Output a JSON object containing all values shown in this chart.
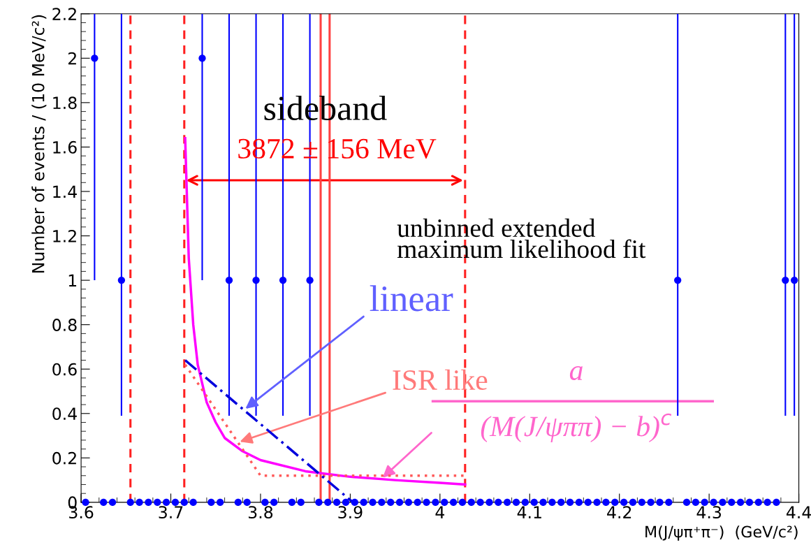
{
  "chart_data": {
    "type": "scatter",
    "xlabel": "M(J/ψπ⁺π⁻)  (GeV/c²)",
    "ylabel": "Number of events / (10 MeV/c²)",
    "xlim": [
      3.6,
      4.4
    ],
    "xticks": [
      3.6,
      3.7,
      3.8,
      3.9,
      4,
      4.1,
      4.2,
      4.3,
      4.4
    ],
    "ylim": [
      0,
      2.2
    ],
    "yticks": [
      0,
      0.2,
      0.4,
      0.6,
      0.8,
      1,
      1.2,
      1.4,
      1.6,
      1.8,
      2,
      2.2
    ],
    "grid": false,
    "marker": "circle",
    "series": [
      {
        "color": "#0000ff",
        "x": [
          3.605,
          3.615,
          3.625,
          3.635,
          3.645,
          3.655,
          3.665,
          3.675,
          3.685,
          3.695,
          3.705,
          3.715,
          3.725,
          3.735,
          3.745,
          3.755,
          3.765,
          3.775,
          3.785,
          3.795,
          3.805,
          3.815,
          3.825,
          3.835,
          3.845,
          3.855,
          3.865,
          3.875,
          3.885,
          3.895,
          3.905,
          3.915,
          3.925,
          3.935,
          3.945,
          3.955,
          3.965,
          3.975,
          3.985,
          3.995,
          4.005,
          4.015,
          4.025,
          4.035,
          4.045,
          4.055,
          4.065,
          4.075,
          4.085,
          4.095,
          4.105,
          4.115,
          4.125,
          4.135,
          4.145,
          4.155,
          4.165,
          4.175,
          4.185,
          4.195,
          4.205,
          4.215,
          4.225,
          4.235,
          4.245,
          4.255,
          4.265,
          4.275,
          4.285,
          4.295,
          4.305,
          4.315,
          4.325,
          4.335,
          4.345,
          4.355,
          4.365,
          4.375,
          4.385,
          4.395
        ],
        "values": [
          0,
          2,
          0,
          0,
          1,
          0,
          0,
          0,
          0,
          0,
          0,
          0,
          0,
          2,
          0,
          0,
          1,
          0,
          0,
          1,
          0,
          0,
          1,
          0,
          0,
          1,
          0,
          0,
          0,
          0,
          0,
          0,
          0,
          0,
          0,
          0,
          0,
          0,
          0,
          0,
          0,
          0,
          0,
          0,
          0,
          0,
          0,
          0,
          0,
          0,
          0,
          0,
          0,
          0,
          0,
          0,
          0,
          0,
          0,
          0,
          0,
          0,
          0,
          0,
          0,
          0,
          1,
          0,
          0,
          0,
          0,
          0,
          0,
          0,
          0,
          0,
          0,
          0,
          1,
          1
        ],
        "errors": [
          null,
          [
            1.0,
            2.2
          ],
          null,
          null,
          [
            0.39,
            2.2
          ],
          null,
          null,
          null,
          null,
          null,
          null,
          null,
          null,
          [
            1.0,
            2.2
          ],
          null,
          null,
          [
            0.39,
            2.2
          ],
          null,
          null,
          [
            0.39,
            2.2
          ],
          null,
          null,
          [
            0.39,
            2.2
          ],
          null,
          null,
          [
            0.39,
            2.2
          ],
          null,
          null,
          null,
          null,
          null,
          null,
          null,
          null,
          null,
          null,
          null,
          null,
          null,
          null,
          null,
          null,
          null,
          null,
          null,
          null,
          null,
          null,
          null,
          null,
          null,
          null,
          null,
          null,
          null,
          null,
          null,
          null,
          null,
          null,
          null,
          null,
          null,
          null,
          null,
          null,
          [
            0.39,
            2.2
          ],
          null,
          null,
          null,
          null,
          null,
          null,
          null,
          null,
          null,
          null,
          null,
          [
            0.39,
            2.2
          ],
          [
            0.39,
            2.2
          ]
        ]
      },
      {
        "type": "line",
        "color": "#ff00ff",
        "line_style": "solid",
        "marker": "none",
        "x": [
          3.716,
          3.72,
          3.725,
          3.73,
          3.74,
          3.75,
          3.76,
          3.78,
          3.8,
          3.85,
          3.9,
          3.95,
          4.0,
          4.028
        ],
        "values": [
          1.64,
          1.1,
          0.8,
          0.62,
          0.45,
          0.36,
          0.29,
          0.23,
          0.19,
          0.14,
          0.115,
          0.1,
          0.088,
          0.08
        ]
      },
      {
        "type": "line",
        "name": "ISR like",
        "color": "#ff5a5a",
        "line_style": "dotted",
        "marker": "none",
        "x": [
          3.716,
          3.8,
          4.028
        ],
        "values": [
          0.62,
          0.12,
          0.12
        ]
      },
      {
        "type": "line",
        "name": "linear",
        "color": "#0000dd",
        "line_style": "dashdot",
        "marker": "none",
        "x": [
          3.716,
          3.903
        ],
        "values": [
          0.64,
          0.0
        ]
      }
    ],
    "ref_lines": [
      {
        "axis": "x",
        "value": 3.655,
        "color": "#ff2020",
        "line_style": "dashed"
      },
      {
        "axis": "x",
        "value": 3.715,
        "color": "#ff2020",
        "line_style": "dashed"
      },
      {
        "axis": "x",
        "value": 4.028,
        "color": "#ff2020",
        "line_style": "dashed"
      },
      {
        "axis": "x",
        "value": 3.867,
        "color": "#ff4040",
        "line_style": "solid"
      },
      {
        "axis": "x",
        "value": 3.877,
        "color": "#ff4040",
        "line_style": "solid"
      }
    ],
    "annotations": [
      "sideband",
      {
        "text": "3872 ± 156 MeV",
        "x": 3.872,
        "y": 1.45
      },
      "unbinned extended\nmaximum likelihood fit",
      "a",
      "(M(J/ψππ) − b)$^{c}$"
    ]
  }
}
